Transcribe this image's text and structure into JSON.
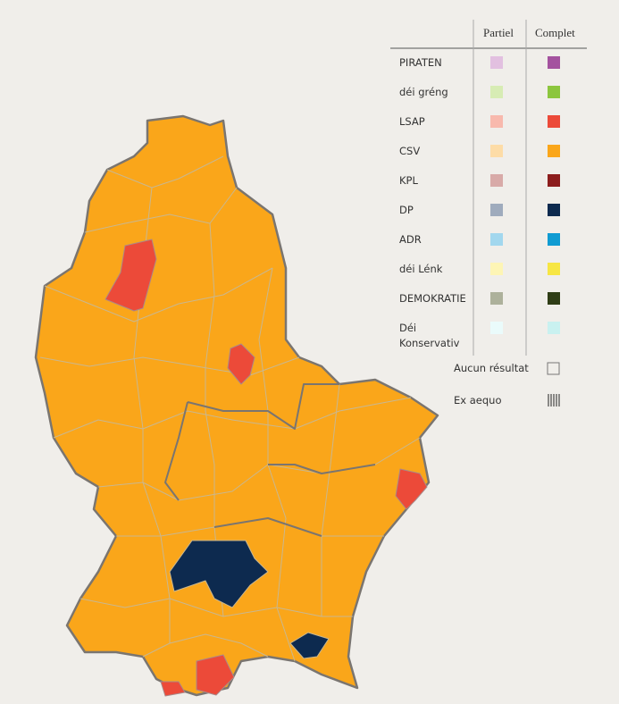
{
  "legend": {
    "columns": [
      "Partiel",
      "Complet"
    ],
    "parties": [
      {
        "name": "PIRATEN",
        "partial_color": "#e2c0e0",
        "complete_color": "#a4529f"
      },
      {
        "name": "déi gréng",
        "partial_color": "#d7ecb4",
        "complete_color": "#8cc63e"
      },
      {
        "name": "LSAP",
        "partial_color": "#f8b9ad",
        "complete_color": "#ec4a39"
      },
      {
        "name": "CSV",
        "partial_color": "#fddca7",
        "complete_color": "#faa61a"
      },
      {
        "name": "KPL",
        "partial_color": "#d8aaa8",
        "complete_color": "#8c1d1d"
      },
      {
        "name": "DP",
        "partial_color": "#9fabbd",
        "complete_color": "#0d2a4f"
      },
      {
        "name": "ADR",
        "partial_color": "#a2d7ee",
        "complete_color": "#109bd2"
      },
      {
        "name": "déi Lénk",
        "partial_color": "#fdf5b5",
        "complete_color": "#f7e643"
      },
      {
        "name": "DEMOKRATIE",
        "partial_color": "#adb19b",
        "complete_color": "#2f3d16"
      },
      {
        "name": "Déi Konservativ",
        "partial_color": "#eafbfb",
        "complete_color": "#c9f1f0"
      }
    ],
    "no_result": "Aucun résultat",
    "tie": "Ex aequo"
  }
}
